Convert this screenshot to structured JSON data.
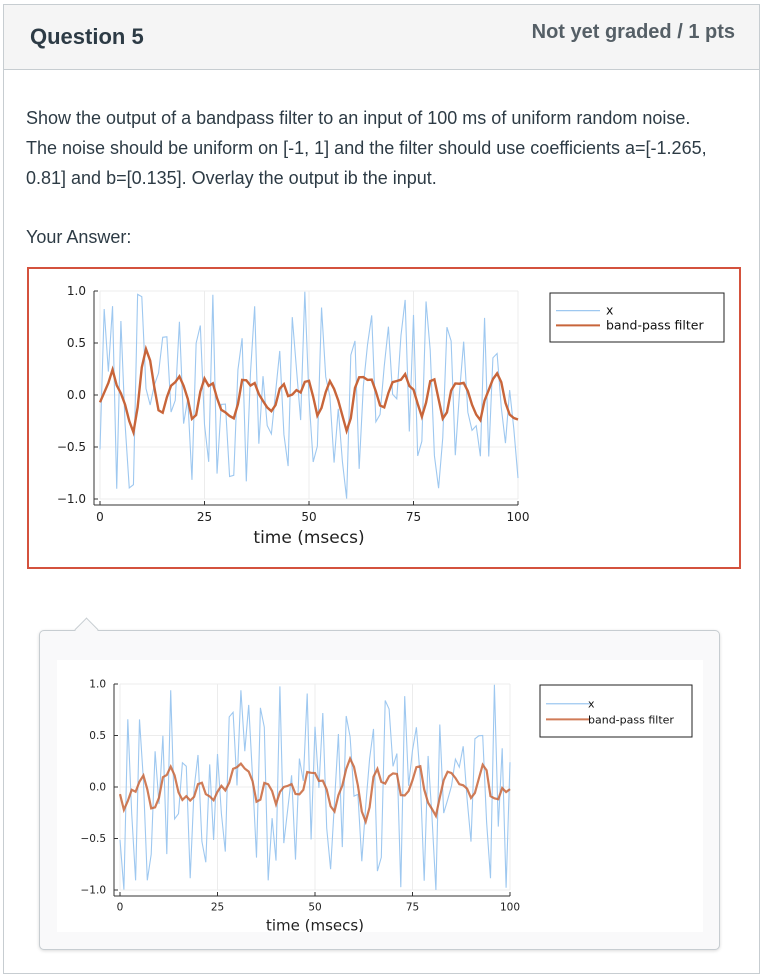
{
  "question": {
    "title": "Question 5",
    "points": "Not yet graded / 1 pts",
    "text": "Show the output of a bandpass filter to an input of 100 ms of uniform random noise.  The noise should be uniform on [-1, 1] and the filter should use coefficients a=[-1.265, 0.81] and b=[0.135]. Overlay the output ib the input.",
    "your_answer_label": "Your Answer:"
  },
  "colors": {
    "input_series": "#9ec8f0",
    "filter_series": "#c8653a",
    "answer_border": "#d4523d"
  },
  "chart_data": [
    {
      "type": "line",
      "xlabel": "time (msecs)",
      "ylabel": "",
      "xlim": [
        0,
        100
      ],
      "ylim": [
        -1.0,
        1.0
      ],
      "xticks": [
        "0",
        "25",
        "50",
        "75",
        "100"
      ],
      "yticks": [
        "1.0",
        "0.5",
        "0.0",
        "−0.5",
        "−1.0"
      ],
      "legend_position": "top-right",
      "grid": true,
      "series": [
        {
          "name": "x",
          "seed": 7
        },
        {
          "name": "band-pass filter"
        }
      ]
    },
    {
      "type": "line",
      "xlabel": "time (msecs)",
      "ylabel": "",
      "xlim": [
        0,
        100
      ],
      "ylim": [
        -1.0,
        1.0
      ],
      "xticks": [
        "0",
        "25",
        "50",
        "75",
        "100"
      ],
      "yticks": [
        "1.0",
        "0.5",
        "0.0",
        "−0.5",
        "−1.0"
      ],
      "legend_position": "top-right",
      "grid": true,
      "series": [
        {
          "name": "x",
          "seed": 19
        },
        {
          "name": "band-pass filter"
        }
      ]
    }
  ]
}
